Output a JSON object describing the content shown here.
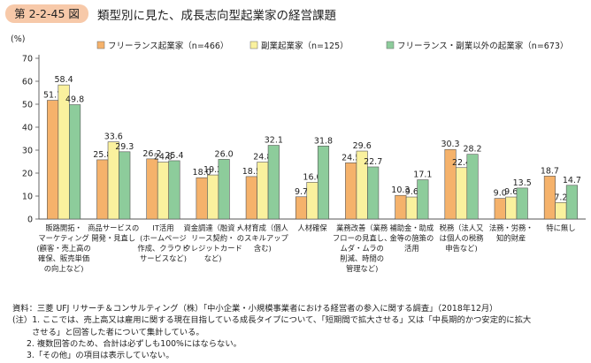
{
  "figure": {
    "number": "第 2-2-45 図",
    "title": "類型別に見た、成長志向型起業家の経営課題"
  },
  "notes": {
    "source": "資料：三菱 UFJ リサーチ＆コンサルティング（株）「中小企業・小規模事業者における経営者の参入に関する調査」（2018年12月）",
    "note1a": "(注）1. ここでは、売上高又は雇用に関する現在目指している成長タイプについて、「短期間で拡大させる」又は「中長期的かつ安定的に拡大",
    "note1b": "させる」と回答した者について集計している。",
    "note2": "2. 複数回答のため、合計は必ずしも100%にはならない。",
    "note3": "3.「その他」の項目は表示していない。"
  },
  "chart_data": {
    "type": "bar",
    "ylabel": "(%)",
    "ylim": [
      0,
      70
    ],
    "yticks": [
      0,
      10,
      20,
      30,
      40,
      50,
      60,
      70
    ],
    "legend_position": "top",
    "categories": [
      [
        "販路開拓・",
        "マーケティング",
        "(顧客・売上高の",
        "確保、販売単価",
        "の向上など)"
      ],
      [
        "商品サービスの",
        "開発・見直し"
      ],
      [
        "IT活用",
        "(ホームページ",
        "作成、クラウド",
        "サービスなど)"
      ],
      [
        "資金調達（融資・",
        "リース契約・",
        "クレジットカード",
        "など)"
      ],
      [
        "人材育成（個人",
        "のスキルアップ",
        "含む)"
      ],
      [
        "人材確保"
      ],
      [
        "業務改善（業務",
        "フローの見直し、",
        "ムダ・ムラの",
        "削減、時間の",
        "管理など)"
      ],
      [
        "補助金・助成",
        "金等の施策の",
        "活用"
      ],
      [
        "税務（法人又",
        "は個人の税務",
        "申告など)"
      ],
      [
        "法務・労務・",
        "知的財産"
      ],
      [
        "特に無し"
      ]
    ],
    "series": [
      {
        "name": "フリーランス起業家（n=466）",
        "color": "#f5b26b",
        "values": [
          51.7,
          25.8,
          26.2,
          18.0,
          18.5,
          9.7,
          24.5,
          10.3,
          30.3,
          9.0,
          18.7
        ]
      },
      {
        "name": "副業起業家（n=125）",
        "color": "#faf19e",
        "values": [
          58.4,
          33.6,
          24.8,
          19.2,
          24.8,
          16.0,
          29.6,
          9.6,
          22.4,
          9.6,
          7.2
        ]
      },
      {
        "name": "フリーランス・副業以外の起業家（n=673）",
        "color": "#8dcc9b",
        "values": [
          49.8,
          29.3,
          25.4,
          26.0,
          32.1,
          31.8,
          22.7,
          17.1,
          28.2,
          13.5,
          14.7
        ]
      }
    ]
  }
}
